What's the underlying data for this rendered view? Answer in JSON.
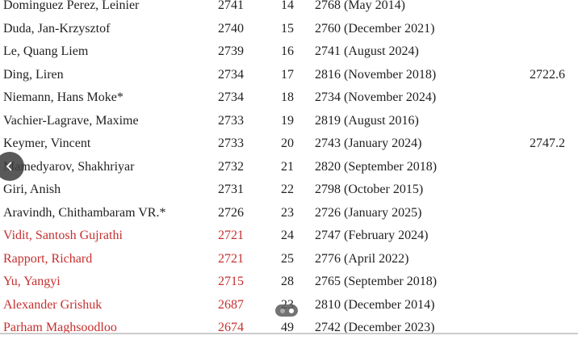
{
  "rows": [
    {
      "name": "Dominguez Perez, Leinier",
      "rating": "2741",
      "rank": "14",
      "peak": "2768 (May 2014)",
      "extra": "",
      "highlight": false
    },
    {
      "name": "Duda, Jan-Krzysztof",
      "rating": "2740",
      "rank": "15",
      "peak": "2760 (December 2021)",
      "extra": "",
      "highlight": false
    },
    {
      "name": "Le, Quang Liem",
      "rating": "2739",
      "rank": "16",
      "peak": "2741 (August 2024)",
      "extra": "",
      "highlight": false
    },
    {
      "name": "Ding, Liren",
      "rating": "2734",
      "rank": "17",
      "peak": "2816 (November 2018)",
      "extra": "2722.6",
      "highlight": false
    },
    {
      "name": "Niemann, Hans Moke*",
      "rating": "2734",
      "rank": "18",
      "peak": "2734 (November 2024)",
      "extra": "",
      "highlight": false
    },
    {
      "name": "Vachier-Lagrave, Maxime",
      "rating": "2733",
      "rank": "19",
      "peak": "2819 (August 2016)",
      "extra": "",
      "highlight": false
    },
    {
      "name": "Keymer, Vincent",
      "rating": "2733",
      "rank": "20",
      "peak": "2743 (January 2024)",
      "extra": "2747.2",
      "highlight": false
    },
    {
      "name": "Mamedyarov, Shakhriyar",
      "rating": "2732",
      "rank": "21",
      "peak": "2820 (September 2018)",
      "extra": "",
      "highlight": false
    },
    {
      "name": "Giri, Anish",
      "rating": "2731",
      "rank": "22",
      "peak": "2798 (October 2015)",
      "extra": "",
      "highlight": false
    },
    {
      "name": "Aravindh, Chithambaram VR.*",
      "rating": "2726",
      "rank": "23",
      "peak": "2726 (January 2025)",
      "extra": "",
      "highlight": false
    },
    {
      "name": "Vidit, Santosh Gujrathi",
      "rating": "2721",
      "rank": "24",
      "peak": "2747 (February 2024)",
      "extra": "",
      "highlight": true
    },
    {
      "name": "Rapport, Richard",
      "rating": "2721",
      "rank": "25",
      "peak": "2776 (April 2022)",
      "extra": "",
      "highlight": true
    },
    {
      "name": "Yu, Yangyi",
      "rating": "2715",
      "rank": "28",
      "peak": "2765 (September 2018)",
      "extra": "",
      "highlight": true
    },
    {
      "name": "Alexander Grishuk",
      "rating": "2687",
      "rank": "23",
      "peak": "2810 (December 2014)",
      "extra": "",
      "highlight": true
    },
    {
      "name": "Parham Maghsoodloo",
      "rating": "2674",
      "rank": "49",
      "peak": "2742 (December 2023)",
      "extra": "",
      "highlight": true
    }
  ],
  "colors": {
    "highlight": "#c62f2f",
    "text": "#1f1f1f"
  },
  "icons": {
    "back": "chevron-left-icon",
    "pager": "carousel-dots-icon"
  }
}
